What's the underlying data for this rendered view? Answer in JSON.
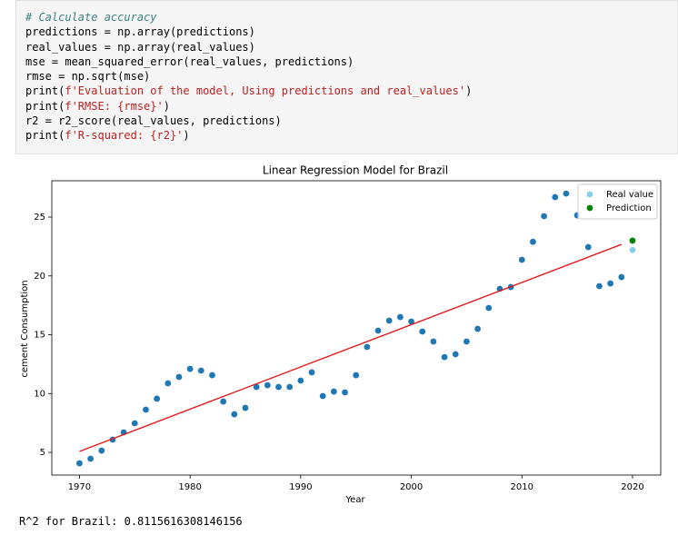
{
  "code": {
    "lines": [
      [
        {
          "text": "# Calculate accuracy",
          "color": "#408080",
          "italic": true
        }
      ],
      [
        {
          "text": "predictions = np.array(predictions)",
          "color": "#000000"
        }
      ],
      [
        {
          "text": "real_values = np.array(real_values)",
          "color": "#000000"
        }
      ],
      [
        {
          "text": "mse = mean_squared_error(real_values, predictions)",
          "color": "#000000"
        }
      ],
      [
        {
          "text": "rmse = np.sqrt(mse)",
          "color": "#000000"
        }
      ],
      [
        {
          "text": "print(",
          "color": "#000000"
        },
        {
          "text": "f'Evaluation of the model, Using predictions and real_values'",
          "color": "#ba2121"
        },
        {
          "text": ")",
          "color": "#000000"
        }
      ],
      [
        {
          "text": "print(",
          "color": "#000000"
        },
        {
          "text": "f'RMSE: {rmse}'",
          "color": "#ba2121"
        },
        {
          "text": ")",
          "color": "#000000"
        }
      ],
      [
        {
          "text": "r2 = r2_score(real_values, predictions)",
          "color": "#000000"
        }
      ],
      [
        {
          "text": "print(",
          "color": "#000000"
        },
        {
          "text": "f'R-squared: {r2}'",
          "color": "#ba2121"
        },
        {
          "text": ")",
          "color": "#000000"
        }
      ]
    ]
  },
  "chart_data": {
    "type": "scatter",
    "title": "Linear Regression Model for Brazil",
    "x_label": "Year",
    "y_label": "cement Consumption",
    "xlim": [
      1967.5,
      2022.55
    ],
    "ylim": [
      3.07,
      28.09
    ],
    "xticks": [
      1970,
      1980,
      1990,
      2000,
      2010,
      2020
    ],
    "yticks": [
      5,
      10,
      15,
      20,
      25
    ],
    "legend": "upper right",
    "series": [
      {
        "color": "#1f77b4",
        "kind": "points",
        "x": [
          1970,
          1971,
          1972,
          1973,
          1974,
          1975,
          1976,
          1977,
          1978,
          1979,
          1980,
          1981,
          1982,
          1983,
          1984,
          1985,
          1986,
          1987,
          1988,
          1989,
          1990,
          1991,
          1992,
          1993,
          1994,
          1995,
          1996,
          1997,
          1998,
          1999,
          2000,
          2001,
          2002,
          2003,
          2004,
          2005,
          2006,
          2007,
          2008,
          2009,
          2010,
          2011,
          2012,
          2013,
          2014,
          2015,
          2016,
          2017,
          2018,
          2019
        ],
        "values": [
          4.07,
          4.46,
          5.15,
          6.08,
          6.7,
          7.47,
          8.63,
          9.56,
          10.87,
          11.41,
          12.1,
          11.95,
          11.56,
          9.32,
          8.24,
          8.78,
          10.56,
          10.71,
          10.56,
          10.56,
          11.1,
          11.8,
          9.79,
          10.17,
          10.1,
          11.56,
          13.96,
          15.35,
          16.2,
          16.5,
          16.12,
          15.27,
          14.42,
          13.1,
          13.34,
          14.42,
          15.5,
          17.28,
          18.9,
          19.05,
          21.37,
          22.9,
          25.08,
          26.7,
          27.0,
          25.15,
          22.45,
          19.13,
          19.36,
          19.9
        ]
      },
      {
        "color": "#e41a1c",
        "kind": "line",
        "x": [
          1970,
          2019
        ],
        "values": [
          5.08,
          22.68
        ]
      },
      {
        "name": "Real value",
        "color": "#87ceeb",
        "kind": "points",
        "x": [
          2020
        ],
        "values": [
          22.2
        ]
      },
      {
        "name": "Prediction",
        "color": "#008000",
        "kind": "points",
        "x": [
          2020
        ],
        "values": [
          23.0
        ]
      }
    ]
  },
  "output": "R^2 for Brazil: 0.8115616308146156"
}
